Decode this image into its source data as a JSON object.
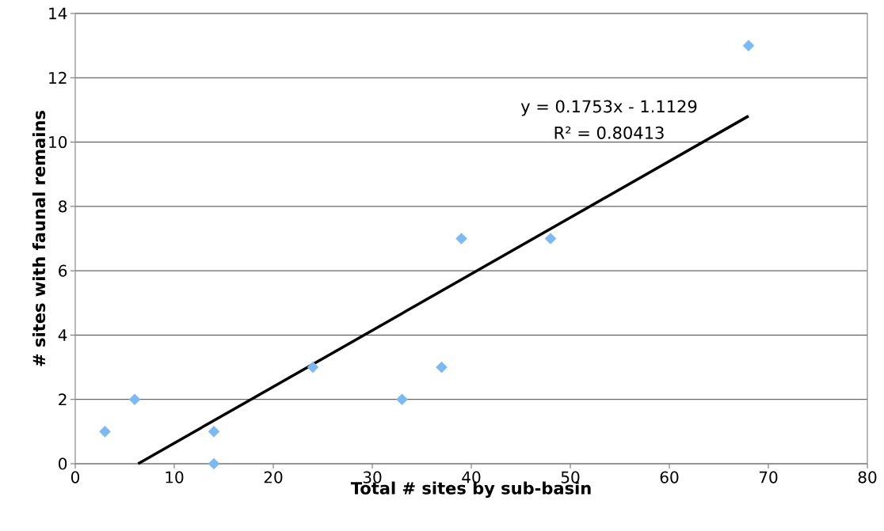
{
  "chart_data": {
    "type": "scatter",
    "xlabel": "Total # sites by sub-basin",
    "ylabel": "# sites with faunal remains",
    "series": [
      {
        "color": "#7cb8f2",
        "marker": "diamond",
        "x": [
          3,
          6,
          14,
          14,
          24,
          33,
          37,
          39,
          48,
          68
        ],
        "values": [
          1,
          2,
          1,
          0,
          3,
          2,
          3,
          7,
          7,
          13
        ]
      },
      {
        "type": "line",
        "color": "#000000",
        "marker": "none",
        "line_style": "solid",
        "x": [
          6.35,
          68
        ],
        "values": [
          0,
          10.81
        ]
      }
    ],
    "annotations": [
      "y = 0.1753x - 1.1129",
      "R² = 0.80413"
    ],
    "xlim": [
      0,
      80
    ],
    "xticks": [
      0,
      10,
      20,
      30,
      40,
      50,
      60,
      70,
      80
    ],
    "ylim": [
      0,
      14
    ],
    "yticks": [
      0,
      2,
      4,
      6,
      8,
      10,
      12,
      14
    ],
    "grid": "y"
  }
}
